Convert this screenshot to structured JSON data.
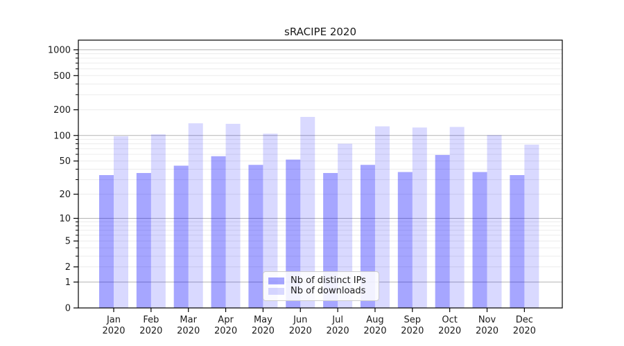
{
  "title": "sRACIPE 2020",
  "colors": {
    "bar_distinct_ips": "rgba(0,0,255,0.35)",
    "bar_downloads": "rgba(0,0,255,0.15)",
    "grid_major": "#b3b3b3",
    "grid_minor": "#ececec",
    "axis": "#000000",
    "text": "#1a1a1a",
    "background": "#ffffff"
  },
  "legend": {
    "items": [
      {
        "label": "Nb of distinct IPs",
        "color": "rgba(0,0,255,0.35)"
      },
      {
        "label": "Nb of downloads",
        "color": "rgba(0,0,255,0.15)"
      }
    ]
  },
  "chart_data": {
    "type": "bar",
    "title": "sRACIPE 2020",
    "y_scale": "log1p",
    "ylim": [
      0,
      1295
    ],
    "grid": true,
    "legend_position": "lower center",
    "categories": [
      "Jan 2020",
      "Feb 2020",
      "Mar 2020",
      "Apr 2020",
      "May 2020",
      "Jun 2020",
      "Jul 2020",
      "Aug 2020",
      "Sep 2020",
      "Oct 2020",
      "Nov 2020",
      "Dec 2020"
    ],
    "series": [
      {
        "name": "Nb of distinct IPs",
        "color": "rgba(0,0,255,0.35)",
        "values": [
          34,
          36,
          44,
          57,
          45,
          52,
          36,
          45,
          37,
          59,
          37,
          34
        ]
      },
      {
        "name": "Nb of downloads",
        "color": "rgba(0,0,255,0.15)",
        "values": [
          98,
          103,
          139,
          137,
          105,
          165,
          80,
          128,
          124,
          126,
          101,
          78
        ]
      }
    ],
    "y_ticks_labeled": [
      0,
      1,
      2,
      5,
      10,
      20,
      50,
      100,
      200,
      500,
      1000
    ],
    "y_ticks_major_grid": [
      1,
      10,
      100,
      1000
    ],
    "y_ticks_minor": [
      2,
      3,
      4,
      5,
      6,
      7,
      8,
      9,
      20,
      30,
      40,
      50,
      60,
      70,
      80,
      90,
      200,
      300,
      400,
      500,
      600,
      700,
      800,
      900
    ]
  }
}
